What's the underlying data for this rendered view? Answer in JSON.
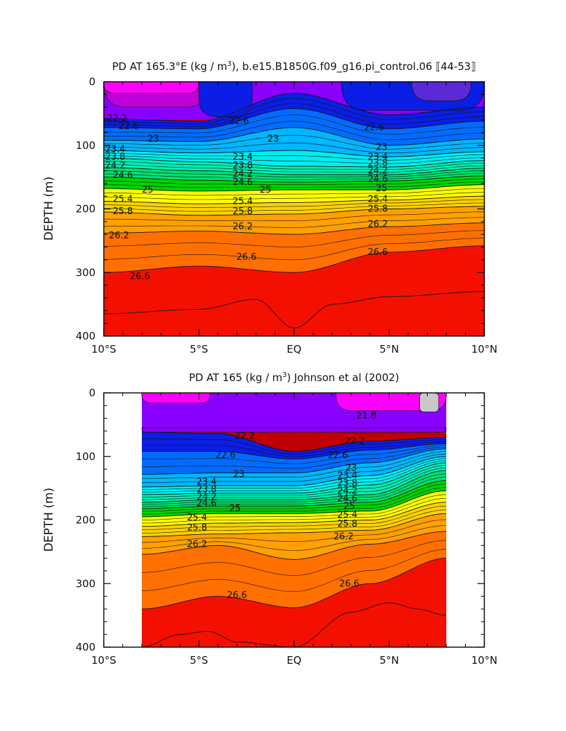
{
  "figure": {
    "background": "#ffffff"
  },
  "chart_data": [
    {
      "type": "contour",
      "title_main": "PD AT 165.3°E (kg / m",
      "title_sup": "3",
      "title_rest": "), b.e15.B1850G.f09_g16.pi_control.06 ⟦44-53⟧",
      "ylabel": "DEPTH (m)",
      "xlabel": "",
      "xlim": [
        -10,
        10
      ],
      "ylim": [
        400,
        0
      ],
      "y_inverted": true,
      "x_ticks": [
        -10,
        -5,
        0,
        5,
        10
      ],
      "x_tick_labels": [
        "10°S",
        "5°S",
        "EQ",
        "5°N",
        "10°N"
      ],
      "y_ticks": [
        0,
        100,
        200,
        300,
        400
      ],
      "y_tick_labels": [
        "0",
        "100",
        "200",
        "300",
        "400"
      ],
      "data_xrange": [
        -10,
        10
      ],
      "colormap": [
        "#ff00ff",
        "#c000d8",
        "#8a00ff",
        "#5a2ad6",
        "#0a1ee6",
        "#006cff",
        "#00b6ff",
        "#00ecf0",
        "#00eeb4",
        "#00e070",
        "#00d400",
        "#a8e800",
        "#ffff00",
        "#ffd200",
        "#ffa000",
        "#ff7000",
        "#ff3a00",
        "#f41000",
        "#d80000",
        "#c00000"
      ],
      "levels": [
        21.8,
        22.2,
        22.6,
        23,
        23.4,
        23.8,
        24.2,
        24.6,
        25,
        25.4,
        25.8,
        26.2,
        26.6,
        27.0
      ],
      "isopycnals": [
        {
          "value": 22.2,
          "x": [
            -10,
            -5,
            0,
            5,
            10
          ],
          "depth": [
            58,
            62,
            18,
            52,
            40
          ]
        },
        {
          "value": 22.6,
          "x": [
            -10,
            -5,
            0,
            5,
            10
          ],
          "depth": [
            72,
            74,
            42,
            74,
            62
          ]
        },
        {
          "value": 23,
          "x": [
            -10,
            -5,
            0,
            5,
            10
          ],
          "depth": [
            92,
            94,
            72,
            100,
            90
          ]
        },
        {
          "value": 23.4,
          "x": [
            -10,
            -5,
            0,
            5,
            10
          ],
          "depth": [
            108,
            112,
            108,
            118,
            110
          ]
        },
        {
          "value": 23.8,
          "x": [
            -10,
            -5,
            0,
            5,
            10
          ],
          "depth": [
            120,
            126,
            133,
            134,
            124
          ]
        },
        {
          "value": 24.2,
          "x": [
            -10,
            -5,
            0,
            5,
            10
          ],
          "depth": [
            135,
            140,
            146,
            146,
            136
          ]
        },
        {
          "value": 24.6,
          "x": [
            -10,
            -5,
            0,
            5,
            10
          ],
          "depth": [
            150,
            155,
            158,
            156,
            148
          ]
        },
        {
          "value": 25,
          "x": [
            -10,
            -5,
            0,
            5,
            10
          ],
          "depth": [
            168,
            172,
            170,
            170,
            162
          ]
        },
        {
          "value": 25.4,
          "x": [
            -10,
            -5,
            0,
            5,
            10
          ],
          "depth": [
            188,
            192,
            190,
            186,
            180
          ]
        },
        {
          "value": 25.8,
          "x": [
            -10,
            -5,
            0,
            5,
            10
          ],
          "depth": [
            205,
            210,
            208,
            200,
            196
          ]
        },
        {
          "value": 26.2,
          "x": [
            -10,
            -5,
            0,
            5,
            10
          ],
          "depth": [
            238,
            235,
            240,
            228,
            222
          ]
        },
        {
          "value": 26.6,
          "x": [
            -10,
            -5,
            0,
            5,
            10
          ],
          "depth": [
            300,
            290,
            300,
            268,
            258
          ]
        }
      ],
      "contour_labels": [
        {
          "text": "22.2",
          "x": -9.3,
          "depth": 58
        },
        {
          "text": "22.6",
          "x": -8.7,
          "depth": 70
        },
        {
          "text": "23",
          "x": -7.4,
          "depth": 90
        },
        {
          "text": "23.4",
          "x": -9.4,
          "depth": 106
        },
        {
          "text": "23.8",
          "x": -9.4,
          "depth": 118
        },
        {
          "text": "24.2",
          "x": -9.4,
          "depth": 132
        },
        {
          "text": "24.6",
          "x": -9.0,
          "depth": 147
        },
        {
          "text": "25",
          "x": -7.7,
          "depth": 170
        },
        {
          "text": "25.4",
          "x": -9.0,
          "depth": 185
        },
        {
          "text": "25.8",
          "x": -9.0,
          "depth": 204
        },
        {
          "text": "26.2",
          "x": -9.2,
          "depth": 242
        },
        {
          "text": "26.6",
          "x": -8.1,
          "depth": 306
        },
        {
          "text": "22.6",
          "x": -2.9,
          "depth": 62
        },
        {
          "text": "23",
          "x": -1.1,
          "depth": 90
        },
        {
          "text": "23.4",
          "x": -2.7,
          "depth": 118
        },
        {
          "text": "23.8",
          "x": -2.7,
          "depth": 132
        },
        {
          "text": "24.2",
          "x": -2.7,
          "depth": 145
        },
        {
          "text": "24.6",
          "x": -2.7,
          "depth": 158
        },
        {
          "text": "25",
          "x": -1.5,
          "depth": 170
        },
        {
          "text": "25.4",
          "x": -2.7,
          "depth": 188
        },
        {
          "text": "25.8",
          "x": -2.7,
          "depth": 204
        },
        {
          "text": "26.2",
          "x": -2.7,
          "depth": 228
        },
        {
          "text": "26.6",
          "x": -2.5,
          "depth": 276
        },
        {
          "text": "22.6",
          "x": 4.2,
          "depth": 72
        },
        {
          "text": "23",
          "x": 4.6,
          "depth": 103
        },
        {
          "text": "23.4",
          "x": 4.4,
          "depth": 118
        },
        {
          "text": "23.8",
          "x": 4.4,
          "depth": 128
        },
        {
          "text": "24.2",
          "x": 4.4,
          "depth": 140
        },
        {
          "text": "24.6",
          "x": 4.4,
          "depth": 153
        },
        {
          "text": "25",
          "x": 4.6,
          "depth": 168
        },
        {
          "text": "25.4",
          "x": 4.4,
          "depth": 185
        },
        {
          "text": "25.8",
          "x": 4.4,
          "depth": 200
        },
        {
          "text": "26.2",
          "x": 4.4,
          "depth": 224
        },
        {
          "text": "26.6",
          "x": 4.4,
          "depth": 268
        }
      ],
      "surface_patches": [
        {
          "color": "#c000d8",
          "x": [
            -10,
            -4.5
          ],
          "depth": [
            0,
            40
          ]
        },
        {
          "color": "#ff00ff",
          "x": [
            -10,
            -5.0
          ],
          "depth": [
            0,
            18
          ]
        },
        {
          "color": "#0a1ee6",
          "x": [
            -5.0,
            -2.2
          ],
          "depth": [
            0,
            55
          ]
        },
        {
          "color": "#0a1ee6",
          "x": [
            2.5,
            10
          ],
          "depth": [
            0,
            45
          ]
        },
        {
          "color": "#5a2ad6",
          "x": [
            6.2,
            9.3
          ],
          "depth": [
            0,
            30
          ]
        }
      ],
      "deep_contours": [
        {
          "x": [
            -10,
            -5,
            -2,
            0,
            2,
            5,
            10
          ],
          "depth": [
            365,
            358,
            342,
            388,
            350,
            338,
            330
          ]
        }
      ]
    },
    {
      "type": "contour",
      "title_main": "PD AT 165 (kg / m",
      "title_sup": "3",
      "title_rest": ") Johnson et al (2002)",
      "ylabel": "DEPTH (m)",
      "xlabel": "",
      "xlim": [
        -10,
        10
      ],
      "ylim": [
        400,
        0
      ],
      "y_inverted": true,
      "x_ticks": [
        -10,
        -5,
        0,
        5,
        10
      ],
      "x_tick_labels": [
        "10°S",
        "5°S",
        "EQ",
        "5°N",
        "10°N"
      ],
      "y_ticks": [
        0,
        100,
        200,
        300,
        400
      ],
      "y_tick_labels": [
        "0",
        "100",
        "200",
        "300",
        "400"
      ],
      "data_xrange": [
        -8,
        8
      ],
      "colormap": [
        "#ff00ff",
        "#c000d8",
        "#8a00ff",
        "#5a2ad6",
        "#0a1ee6",
        "#006cff",
        "#00b6ff",
        "#00ecf0",
        "#00eeb4",
        "#00e070",
        "#00d400",
        "#a8e800",
        "#ffff00",
        "#ffd200",
        "#ffa000",
        "#ff7000",
        "#ff3a00",
        "#f41000",
        "#d80000",
        "#c00000"
      ],
      "levels": [
        21.8,
        22.2,
        22.6,
        23,
        23.4,
        23.8,
        24.2,
        24.6,
        25,
        25.4,
        25.8,
        26.2,
        26.6,
        27.0
      ],
      "isopycnals": [
        {
          "value": 22.2,
          "x": [
            -8,
            -4,
            0,
            4,
            8
          ],
          "depth": [
            62,
            64,
            92,
            76,
            70
          ]
        },
        {
          "value": 22.6,
          "x": [
            -8,
            -4,
            0,
            4,
            8
          ],
          "depth": [
            92,
            92,
            104,
            90,
            80
          ]
        },
        {
          "value": 23,
          "x": [
            -8,
            -4,
            0,
            4,
            8
          ],
          "depth": [
            128,
            126,
            126,
            110,
            88
          ]
        },
        {
          "value": 23.4,
          "x": [
            -8,
            -4,
            0,
            4,
            8
          ],
          "depth": [
            148,
            146,
            146,
            130,
            100
          ]
        },
        {
          "value": 23.8,
          "x": [
            -8,
            -4,
            0,
            4,
            8
          ],
          "depth": [
            160,
            158,
            158,
            145,
            110
          ]
        },
        {
          "value": 24.2,
          "x": [
            -8,
            -4,
            0,
            4,
            8
          ],
          "depth": [
            172,
            168,
            168,
            160,
            122
          ]
        },
        {
          "value": 24.6,
          "x": [
            -8,
            -4,
            0,
            4,
            8
          ],
          "depth": [
            182,
            178,
            178,
            172,
            138
          ]
        },
        {
          "value": 25,
          "x": [
            -8,
            -4,
            0,
            4,
            8
          ],
          "depth": [
            195,
            190,
            190,
            186,
            154
          ]
        },
        {
          "value": 25.4,
          "x": [
            -8,
            -4,
            0,
            4,
            8
          ],
          "depth": [
            210,
            205,
            204,
            200,
            172
          ]
        },
        {
          "value": 25.8,
          "x": [
            -8,
            -4,
            0,
            4,
            8
          ],
          "depth": [
            226,
            222,
            220,
            216,
            190
          ]
        },
        {
          "value": 26.2,
          "x": [
            -8,
            -4,
            0,
            4,
            8
          ],
          "depth": [
            254,
            240,
            262,
            238,
            218
          ]
        },
        {
          "value": 26.6,
          "x": [
            -8,
            -4,
            0,
            4,
            8
          ],
          "depth": [
            340,
            320,
            338,
            300,
            260
          ]
        }
      ],
      "contour_labels": [
        {
          "text": "21.8",
          "x": 3.8,
          "depth": 36
        },
        {
          "text": "22.2",
          "x": -2.6,
          "depth": 68
        },
        {
          "text": "22.2",
          "x": 3.2,
          "depth": 76
        },
        {
          "text": "22.6",
          "x": -3.6,
          "depth": 98
        },
        {
          "text": "22.6",
          "x": 2.3,
          "depth": 98
        },
        {
          "text": "23",
          "x": -2.9,
          "depth": 128
        },
        {
          "text": "23",
          "x": 3.0,
          "depth": 118
        },
        {
          "text": "23.4",
          "x": -4.6,
          "depth": 140
        },
        {
          "text": "23.4",
          "x": 2.8,
          "depth": 130
        },
        {
          "text": "23.8",
          "x": -4.6,
          "depth": 152
        },
        {
          "text": "23.8",
          "x": 2.8,
          "depth": 142
        },
        {
          "text": "24.2",
          "x": -4.6,
          "depth": 164
        },
        {
          "text": "24.2",
          "x": 2.8,
          "depth": 154
        },
        {
          "text": "24.6",
          "x": -4.6,
          "depth": 174
        },
        {
          "text": "24.6",
          "x": 2.8,
          "depth": 166
        },
        {
          "text": "25",
          "x": -3.1,
          "depth": 182
        },
        {
          "text": "25",
          "x": 2.9,
          "depth": 178
        },
        {
          "text": "25.4",
          "x": -5.1,
          "depth": 196
        },
        {
          "text": "25.4",
          "x": 2.8,
          "depth": 192
        },
        {
          "text": "25.8",
          "x": -5.1,
          "depth": 212
        },
        {
          "text": "25.8",
          "x": 2.8,
          "depth": 206
        },
        {
          "text": "26.2",
          "x": -5.1,
          "depth": 238
        },
        {
          "text": "26.2",
          "x": 2.6,
          "depth": 226
        },
        {
          "text": "26.6",
          "x": -3.0,
          "depth": 318
        },
        {
          "text": "26.6",
          "x": 2.9,
          "depth": 300
        }
      ],
      "surface_patches": [
        {
          "color": "#ff00ff",
          "x": [
            -8,
            -4.4
          ],
          "depth": [
            0,
            16
          ]
        },
        {
          "color": "#ff00ff",
          "x": [
            2.2,
            8
          ],
          "depth": [
            0,
            28
          ]
        },
        {
          "color": "#8a00ff",
          "x": [
            -8,
            8
          ],
          "depth": [
            55,
            62
          ]
        }
      ],
      "missing_patch": {
        "color": "#c8c8c8",
        "x": [
          6.6,
          7.6
        ],
        "depth": [
          0,
          30
        ]
      },
      "deep_contours": [
        {
          "x": [
            -8,
            -6,
            -4.5,
            -3,
            0,
            3,
            5,
            6.5,
            8
          ],
          "depth": [
            400,
            380,
            375,
            392,
            400,
            345,
            330,
            340,
            350
          ]
        }
      ]
    }
  ]
}
